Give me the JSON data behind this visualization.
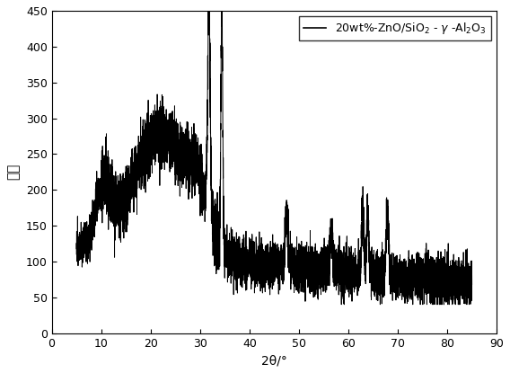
{
  "title": "",
  "xlabel": "2θ/°",
  "ylabel": "强度",
  "xlim": [
    0,
    90
  ],
  "ylim": [
    0,
    450
  ],
  "xticks": [
    0,
    10,
    20,
    30,
    40,
    50,
    60,
    70,
    80,
    90
  ],
  "yticks": [
    0,
    50,
    100,
    150,
    200,
    250,
    300,
    350,
    400,
    450
  ],
  "line_color": "#000000",
  "line_width": 0.7,
  "background_color": "#ffffff",
  "legend_label": "20wt%-ZnO/SiO₂ - γ -Al₂O₃",
  "legend_loc": "upper right",
  "seed": 12345
}
